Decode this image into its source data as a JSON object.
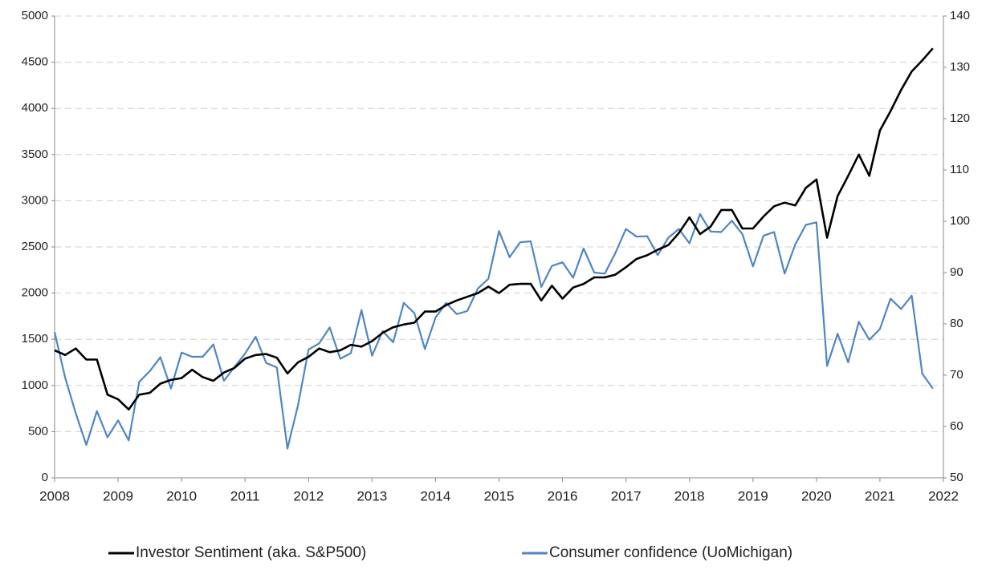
{
  "chart_data": {
    "type": "line",
    "x": [
      2008.0,
      2008.167,
      2008.333,
      2008.5,
      2008.667,
      2008.833,
      2009.0,
      2009.167,
      2009.333,
      2009.5,
      2009.667,
      2009.833,
      2010.0,
      2010.167,
      2010.333,
      2010.5,
      2010.667,
      2010.833,
      2011.0,
      2011.167,
      2011.333,
      2011.5,
      2011.667,
      2011.833,
      2012.0,
      2012.167,
      2012.333,
      2012.5,
      2012.667,
      2012.833,
      2013.0,
      2013.167,
      2013.333,
      2013.5,
      2013.667,
      2013.833,
      2014.0,
      2014.167,
      2014.333,
      2014.5,
      2014.667,
      2014.833,
      2015.0,
      2015.167,
      2015.333,
      2015.5,
      2015.667,
      2015.833,
      2016.0,
      2016.167,
      2016.333,
      2016.5,
      2016.667,
      2016.833,
      2017.0,
      2017.167,
      2017.333,
      2017.5,
      2017.667,
      2017.833,
      2018.0,
      2018.167,
      2018.333,
      2018.5,
      2018.667,
      2018.833,
      2019.0,
      2019.167,
      2019.333,
      2019.5,
      2019.667,
      2019.833,
      2020.0,
      2020.167,
      2020.333,
      2020.5,
      2020.667,
      2020.833,
      2021.0,
      2021.167,
      2021.333,
      2021.5,
      2021.667,
      2021.833
    ],
    "series": [
      {
        "name": "Investor Sentiment (aka. S&P500)",
        "color": "#000000",
        "axis": "y",
        "values": [
          1380,
          1330,
          1400,
          1280,
          1280,
          900,
          850,
          740,
          900,
          920,
          1020,
          1060,
          1080,
          1170,
          1090,
          1050,
          1140,
          1190,
          1290,
          1330,
          1340,
          1300,
          1130,
          1250,
          1310,
          1400,
          1360,
          1380,
          1440,
          1420,
          1480,
          1570,
          1630,
          1660,
          1680,
          1800,
          1800,
          1870,
          1920,
          1960,
          2000,
          2070,
          2000,
          2090,
          2100,
          2100,
          1920,
          2080,
          1940,
          2060,
          2100,
          2170,
          2170,
          2200,
          2280,
          2370,
          2410,
          2470,
          2520,
          2650,
          2820,
          2640,
          2720,
          2900,
          2900,
          2700,
          2700,
          2830,
          2940,
          2980,
          2950,
          3140,
          3230,
          2600,
          3050,
          3270,
          3500,
          3270,
          3760,
          3970,
          4200,
          4400,
          4520,
          4650
        ]
      },
      {
        "name": "Consumer confidence (UoMichigan)",
        "color": "#4f86c1",
        "axis": "y2",
        "values": [
          78.4,
          69.5,
          62.6,
          56.4,
          63,
          57.9,
          61.2,
          57.3,
          68.7,
          70.8,
          73.5,
          67.4,
          74.4,
          73.6,
          73.6,
          76,
          68.9,
          71.6,
          74.2,
          77.5,
          72.4,
          71.5,
          55.7,
          64.1,
          75,
          76.2,
          79.3,
          73.2,
          74.3,
          82.7,
          73.8,
          78.6,
          76.4,
          84.1,
          82.1,
          75.1,
          81.2,
          84.1,
          81.9,
          82.5,
          86.9,
          88.8,
          98.1,
          93,
          95.9,
          96.1,
          87.2,
          91.3,
          92,
          89,
          94.7,
          90,
          89.8,
          93.8,
          98.5,
          97,
          97.1,
          93.4,
          96.8,
          98.5,
          95.7,
          101.4,
          98,
          97.9,
          100.1,
          97.5,
          91.2,
          97.2,
          97.9,
          89.8,
          95.5,
          99.3,
          99.8,
          71.8,
          78.1,
          72.5,
          80.4,
          76.9,
          79,
          84.9,
          82.9,
          85.5,
          70.3,
          67.4
        ]
      }
    ],
    "xlim": [
      2008,
      2022
    ],
    "xticks": [
      2008,
      2009,
      2010,
      2011,
      2012,
      2013,
      2014,
      2015,
      2016,
      2017,
      2018,
      2019,
      2020,
      2021,
      2022
    ],
    "ylim": [
      0,
      5000
    ],
    "yticks": [
      0,
      500,
      1000,
      1500,
      2000,
      2500,
      3000,
      3500,
      4000,
      4500,
      5000
    ],
    "y2lim": [
      50,
      140
    ],
    "y2ticks": [
      50,
      60,
      70,
      80,
      90,
      100,
      110,
      120,
      130,
      140
    ],
    "grid": true
  }
}
